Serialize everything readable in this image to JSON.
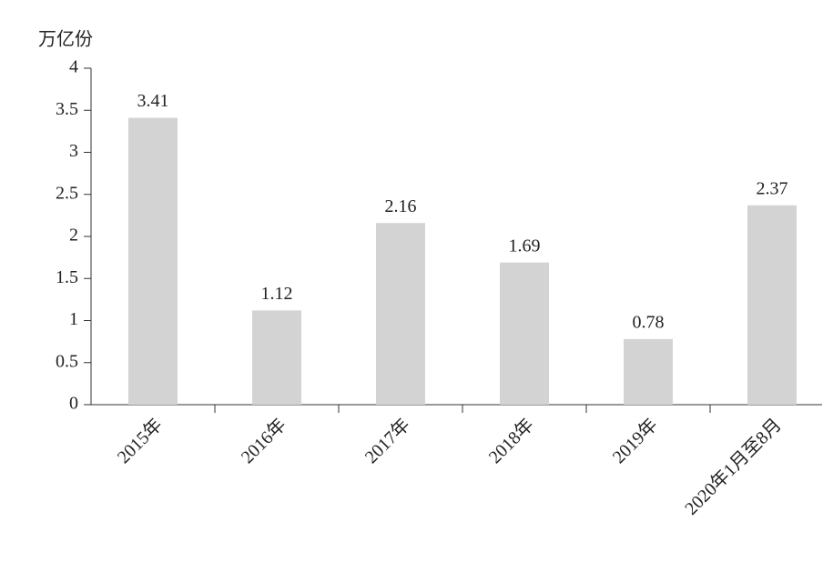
{
  "chart_data": {
    "type": "bar",
    "y_label": "万亿份",
    "categories": [
      "2015年",
      "2016年",
      "2017年",
      "2018年",
      "2019年",
      "2020年1月至8月"
    ],
    "values": [
      3.41,
      1.12,
      2.16,
      1.69,
      0.78,
      2.37
    ],
    "color": "#d3d3d3",
    "ylim": [
      0,
      4
    ],
    "yticks": [
      0,
      0.5,
      1,
      1.5,
      2,
      2.5,
      3,
      3.5,
      4
    ]
  }
}
